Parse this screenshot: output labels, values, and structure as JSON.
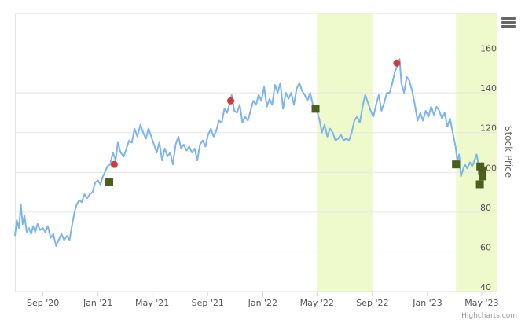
{
  "chart_data": {
    "type": "line",
    "title": "",
    "xlabel": "",
    "ylabel": "Stock Price",
    "ylim": [
      40,
      180
    ],
    "xlim": [
      "2020-07-01",
      "2023-06-05"
    ],
    "y_ticks": [
      40,
      60,
      80,
      100,
      120,
      140,
      160
    ],
    "y_tick_labels": [
      "40",
      "60",
      "80",
      "100",
      "120",
      "140",
      "160"
    ],
    "x_tick_labels": [
      {
        "date": "2020-09-01",
        "label": "Sep '20"
      },
      {
        "date": "2021-01-01",
        "label": "Jan '21"
      },
      {
        "date": "2021-05-01",
        "label": "May '21"
      },
      {
        "date": "2021-09-01",
        "label": "Sep '21"
      },
      {
        "date": "2022-01-01",
        "label": "Jan '22"
      },
      {
        "date": "2022-05-01",
        "label": "May '22"
      },
      {
        "date": "2022-09-01",
        "label": "Sep '22"
      },
      {
        "date": "2023-01-01",
        "label": "Jan '23"
      },
      {
        "date": "2023-05-01",
        "label": "May '23"
      }
    ],
    "grid": true,
    "shaded_bands": [
      {
        "from": "2022-05-01",
        "to": "2022-09-01",
        "color": "#eefacb"
      },
      {
        "from": "2023-03-05",
        "to": "2023-06-05",
        "color": "#eefacb"
      }
    ],
    "series": [
      {
        "color": "#7cb5ec",
        "points": [
          [
            "2020-07-01",
            68
          ],
          [
            "2020-07-05",
            76
          ],
          [
            "2020-07-10",
            72
          ],
          [
            "2020-07-14",
            84
          ],
          [
            "2020-07-18",
            74
          ],
          [
            "2020-07-22",
            78
          ],
          [
            "2020-07-27",
            70
          ],
          [
            "2020-08-01",
            72
          ],
          [
            "2020-08-06",
            69
          ],
          [
            "2020-08-10",
            73
          ],
          [
            "2020-08-15",
            70
          ],
          [
            "2020-08-20",
            74
          ],
          [
            "2020-08-26",
            71
          ],
          [
            "2020-09-01",
            72
          ],
          [
            "2020-09-06",
            70
          ],
          [
            "2020-09-12",
            73
          ],
          [
            "2020-09-18",
            67
          ],
          [
            "2020-09-24",
            69
          ],
          [
            "2020-09-30",
            63
          ],
          [
            "2020-10-06",
            66
          ],
          [
            "2020-10-12",
            69
          ],
          [
            "2020-10-18",
            66
          ],
          [
            "2020-10-24",
            68
          ],
          [
            "2020-10-30",
            66
          ],
          [
            "2020-11-05",
            74
          ],
          [
            "2020-11-10",
            80
          ],
          [
            "2020-11-15",
            84
          ],
          [
            "2020-11-20",
            86
          ],
          [
            "2020-11-26",
            85
          ],
          [
            "2020-12-02",
            89
          ],
          [
            "2020-12-08",
            87
          ],
          [
            "2020-12-14",
            89
          ],
          [
            "2020-12-20",
            90
          ],
          [
            "2020-12-26",
            95
          ],
          [
            "2021-01-01",
            96
          ],
          [
            "2021-01-06",
            94
          ],
          [
            "2021-01-12",
            98
          ],
          [
            "2021-01-16",
            100
          ],
          [
            "2021-01-22",
            103
          ],
          [
            "2021-01-28",
            104
          ],
          [
            "2021-02-03",
            110
          ],
          [
            "2021-02-09",
            106
          ],
          [
            "2021-02-14",
            115
          ],
          [
            "2021-02-20",
            110
          ],
          [
            "2021-02-27",
            108
          ],
          [
            "2021-03-05",
            112
          ],
          [
            "2021-03-11",
            116
          ],
          [
            "2021-03-17",
            115
          ],
          [
            "2021-03-23",
            122
          ],
          [
            "2021-03-29",
            118
          ],
          [
            "2021-04-05",
            124
          ],
          [
            "2021-04-11",
            120
          ],
          [
            "2021-04-17",
            117
          ],
          [
            "2021-04-23",
            122
          ],
          [
            "2021-04-29",
            118
          ],
          [
            "2021-05-05",
            114
          ],
          [
            "2021-05-11",
            110
          ],
          [
            "2021-05-17",
            115
          ],
          [
            "2021-05-23",
            106
          ],
          [
            "2021-05-29",
            112
          ],
          [
            "2021-06-04",
            108
          ],
          [
            "2021-06-10",
            110
          ],
          [
            "2021-06-16",
            104
          ],
          [
            "2021-06-22",
            114
          ],
          [
            "2021-06-28",
            118
          ],
          [
            "2021-07-04",
            112
          ],
          [
            "2021-07-10",
            114
          ],
          [
            "2021-07-16",
            111
          ],
          [
            "2021-07-22",
            113
          ],
          [
            "2021-07-28",
            110
          ],
          [
            "2021-08-03",
            112
          ],
          [
            "2021-08-09",
            106
          ],
          [
            "2021-08-15",
            114
          ],
          [
            "2021-08-21",
            116
          ],
          [
            "2021-08-27",
            113
          ],
          [
            "2021-09-02",
            119
          ],
          [
            "2021-09-08",
            122
          ],
          [
            "2021-09-14",
            118
          ],
          [
            "2021-09-20",
            121
          ],
          [
            "2021-09-26",
            126
          ],
          [
            "2021-10-02",
            125
          ],
          [
            "2021-10-08",
            132
          ],
          [
            "2021-10-14",
            130
          ],
          [
            "2021-10-20",
            135
          ],
          [
            "2021-10-24",
            139
          ],
          [
            "2021-10-30",
            131
          ],
          [
            "2021-11-05",
            130
          ],
          [
            "2021-11-11",
            134
          ],
          [
            "2021-11-17",
            125
          ],
          [
            "2021-11-23",
            128
          ],
          [
            "2021-11-29",
            126
          ],
          [
            "2021-12-05",
            131
          ],
          [
            "2021-12-11",
            136
          ],
          [
            "2021-12-17",
            134
          ],
          [
            "2021-12-23",
            139
          ],
          [
            "2021-12-29",
            136
          ],
          [
            "2022-01-04",
            143
          ],
          [
            "2022-01-10",
            133
          ],
          [
            "2022-01-16",
            137
          ],
          [
            "2022-01-22",
            134
          ],
          [
            "2022-01-28",
            144
          ],
          [
            "2022-02-03",
            140
          ],
          [
            "2022-02-09",
            145
          ],
          [
            "2022-02-15",
            132
          ],
          [
            "2022-02-21",
            140
          ],
          [
            "2022-02-27",
            137
          ],
          [
            "2022-03-05",
            140
          ],
          [
            "2022-03-11",
            134
          ],
          [
            "2022-03-17",
            142
          ],
          [
            "2022-03-23",
            145
          ],
          [
            "2022-03-29",
            141
          ],
          [
            "2022-04-04",
            139
          ],
          [
            "2022-04-10",
            136
          ],
          [
            "2022-04-16",
            140
          ],
          [
            "2022-04-22",
            134
          ],
          [
            "2022-05-01",
            131
          ],
          [
            "2022-05-07",
            126
          ],
          [
            "2022-05-12",
            120
          ],
          [
            "2022-05-18",
            124
          ],
          [
            "2022-05-24",
            118
          ],
          [
            "2022-05-30",
            122
          ],
          [
            "2022-06-05",
            120
          ],
          [
            "2022-06-11",
            116
          ],
          [
            "2022-06-17",
            117
          ],
          [
            "2022-06-23",
            119
          ],
          [
            "2022-06-29",
            116
          ],
          [
            "2022-07-05",
            117
          ],
          [
            "2022-07-11",
            116
          ],
          [
            "2022-07-17",
            120
          ],
          [
            "2022-07-23",
            126
          ],
          [
            "2022-07-29",
            128
          ],
          [
            "2022-08-04",
            125
          ],
          [
            "2022-08-10",
            133
          ],
          [
            "2022-08-16",
            139
          ],
          [
            "2022-08-22",
            135
          ],
          [
            "2022-08-28",
            131
          ],
          [
            "2022-09-03",
            128
          ],
          [
            "2022-09-09",
            134
          ],
          [
            "2022-09-15",
            139
          ],
          [
            "2022-09-21",
            131
          ],
          [
            "2022-09-27",
            135
          ],
          [
            "2022-10-03",
            140
          ],
          [
            "2022-10-09",
            140
          ],
          [
            "2022-10-15",
            145
          ],
          [
            "2022-10-21",
            151
          ],
          [
            "2022-10-27",
            154
          ],
          [
            "2022-10-31",
            157
          ],
          [
            "2022-11-04",
            145
          ],
          [
            "2022-11-10",
            140
          ],
          [
            "2022-11-16",
            148
          ],
          [
            "2022-11-22",
            146
          ],
          [
            "2022-11-28",
            141
          ],
          [
            "2022-12-04",
            134
          ],
          [
            "2022-12-10",
            126
          ],
          [
            "2022-12-16",
            130
          ],
          [
            "2022-12-22",
            126
          ],
          [
            "2022-12-28",
            131
          ],
          [
            "2023-01-03",
            128
          ],
          [
            "2023-01-09",
            133
          ],
          [
            "2023-01-15",
            129
          ],
          [
            "2023-01-21",
            133
          ],
          [
            "2023-01-27",
            131
          ],
          [
            "2023-02-02",
            127
          ],
          [
            "2023-02-08",
            130
          ],
          [
            "2023-02-14",
            123
          ],
          [
            "2023-02-20",
            127
          ],
          [
            "2023-02-26",
            120
          ],
          [
            "2023-03-04",
            113
          ],
          [
            "2023-03-08",
            106
          ],
          [
            "2023-03-12",
            109
          ],
          [
            "2023-03-16",
            98
          ],
          [
            "2023-03-20",
            101
          ],
          [
            "2023-03-25",
            104
          ],
          [
            "2023-03-30",
            102
          ],
          [
            "2023-04-05",
            105
          ],
          [
            "2023-04-10",
            103
          ],
          [
            "2023-04-15",
            106
          ],
          [
            "2023-04-20",
            109
          ],
          [
            "2023-04-25",
            102
          ],
          [
            "2023-04-30",
            104
          ]
        ]
      }
    ],
    "markers": [
      {
        "kind": "circle",
        "color": "#d13b3b",
        "points": [
          [
            "2021-02-06",
            104
          ],
          [
            "2021-10-22",
            136
          ],
          [
            "2022-10-25",
            155
          ]
        ]
      },
      {
        "kind": "square",
        "color": "#4a5e1e",
        "points": [
          [
            "2021-01-26",
            95
          ],
          [
            "2022-04-28",
            132
          ],
          [
            "2023-03-05",
            104
          ],
          [
            "2023-04-28",
            103
          ],
          [
            "2023-05-02",
            101
          ],
          [
            "2023-05-03",
            98
          ],
          [
            "2023-04-27",
            94
          ]
        ]
      }
    ],
    "credits": "Highcharts.com"
  }
}
